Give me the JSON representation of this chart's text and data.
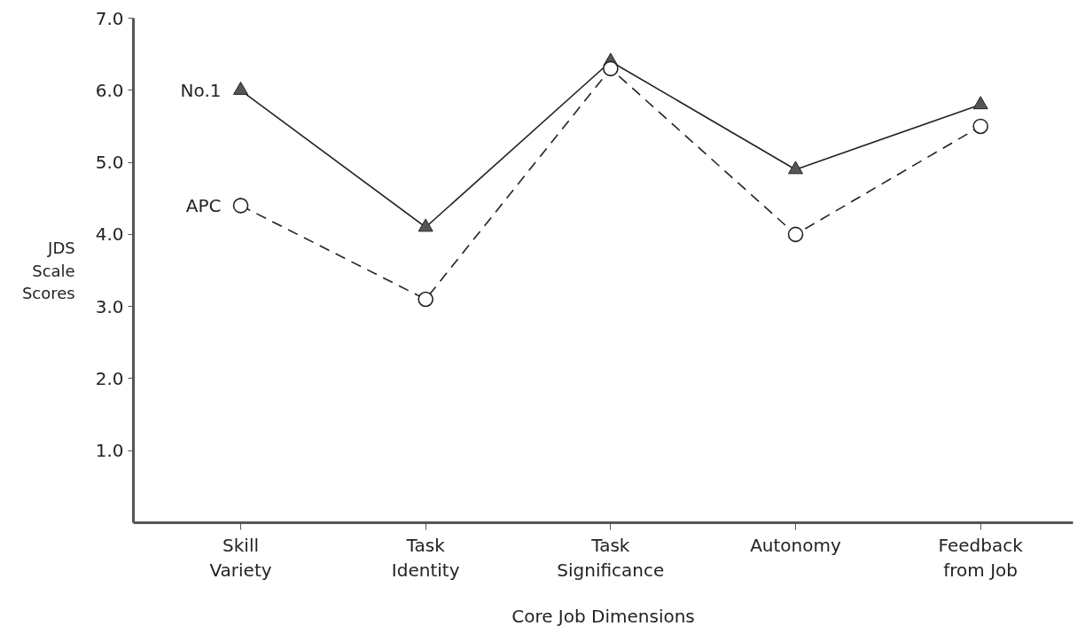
{
  "chart_data": {
    "type": "line",
    "xlabel": "Core Job Dimensions",
    "ylabel": "JDS\nScale\nScores",
    "categories": [
      "Skill\nVariety",
      "Task\nIdentity",
      "Task\nSignificance",
      "Autonomy",
      "Feedback\nfrom Job"
    ],
    "ylim": [
      0,
      7
    ],
    "yticks": [
      {
        "value": 1,
        "label": "1.0"
      },
      {
        "value": 2,
        "label": "2.0"
      },
      {
        "value": 3,
        "label": "3.0"
      },
      {
        "value": 4,
        "label": "4.0"
      },
      {
        "value": 5,
        "label": "5.0"
      },
      {
        "value": 6,
        "label": "6.0"
      },
      {
        "value": 7,
        "label": "7.0"
      }
    ],
    "grid": false,
    "series": [
      {
        "name": "No.1",
        "color": "#222222",
        "marker": "triangle",
        "line_style": "solid",
        "values": [
          6.0,
          4.1,
          6.4,
          4.9,
          5.8
        ]
      },
      {
        "name": "APC",
        "color": "#222222",
        "marker": "circle",
        "line_style": "dashed",
        "values": [
          4.4,
          3.1,
          6.3,
          4.0,
          5.5
        ]
      }
    ]
  }
}
